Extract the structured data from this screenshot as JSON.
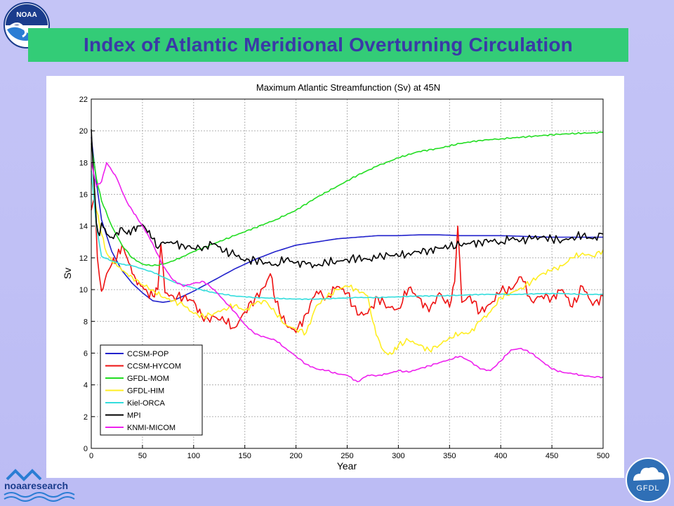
{
  "slide": {
    "title": "Index of Atlantic Meridional Overturning Circulation",
    "noaa_logo_text": "NOAA",
    "noaa_research_text": "noaaresearch",
    "gfdl_logo_text": "GFDL"
  },
  "colors": {
    "background": "#c0c0f5",
    "title_bar": "#33cc77",
    "title_text": "#3a3aa6"
  },
  "chart_data": {
    "type": "line",
    "title": "Maximum Atlantic Streamfunction (Sv) at 45N",
    "xlabel": "Year",
    "ylabel": "Sv",
    "xlim": [
      0,
      500
    ],
    "ylim": [
      0,
      22
    ],
    "xticks": [
      0,
      50,
      100,
      150,
      200,
      250,
      300,
      350,
      400,
      450,
      500
    ],
    "yticks": [
      0,
      2,
      4,
      6,
      8,
      10,
      12,
      14,
      16,
      18,
      20,
      22
    ],
    "grid": true,
    "legend_position": "bottom-left",
    "series": [
      {
        "name": "CCSM-POP",
        "color": "#2222cc",
        "x": [
          0,
          5,
          10,
          20,
          30,
          40,
          50,
          60,
          70,
          80,
          90,
          100,
          120,
          140,
          160,
          180,
          200,
          220,
          240,
          260,
          280,
          300,
          320,
          340,
          360,
          380,
          400,
          450,
          500
        ],
        "y": [
          19.6,
          16.8,
          14.4,
          12.4,
          11.2,
          10.4,
          9.8,
          9.3,
          9.2,
          9.3,
          9.6,
          9.9,
          10.6,
          11.3,
          11.9,
          12.4,
          12.8,
          13.0,
          13.2,
          13.3,
          13.4,
          13.4,
          13.45,
          13.45,
          13.4,
          13.4,
          13.4,
          13.3,
          13.3
        ]
      },
      {
        "name": "CCSM-HYCOM",
        "color": "#ee1111",
        "x": [
          0,
          3,
          6,
          10,
          15,
          20,
          25,
          30,
          35,
          40,
          45,
          50,
          55,
          60,
          65,
          68,
          72,
          80,
          90,
          100,
          110,
          120,
          130,
          140,
          150,
          160,
          170,
          175,
          180,
          190,
          200,
          210,
          220,
          230,
          240,
          250,
          260,
          270,
          280,
          290,
          300,
          310,
          320,
          330,
          340,
          350,
          355,
          358,
          362,
          370,
          380,
          390,
          400,
          410,
          420,
          430,
          440,
          450,
          460,
          470,
          480,
          490,
          500
        ],
        "y": [
          15.0,
          15.8,
          12.0,
          9.9,
          11.0,
          11.6,
          12.0,
          12.8,
          12.0,
          11.0,
          10.3,
          10.2,
          9.8,
          9.6,
          10.0,
          12.9,
          9.8,
          9.6,
          9.5,
          9.3,
          8.0,
          8.3,
          8.0,
          7.6,
          8.6,
          9.5,
          10.2,
          11.0,
          9.2,
          7.8,
          7.3,
          8.5,
          9.9,
          9.5,
          10.2,
          9.8,
          8.4,
          8.5,
          9.5,
          8.9,
          8.8,
          10.1,
          9.5,
          8.6,
          9.8,
          8.9,
          10.5,
          14.0,
          9.2,
          9.6,
          8.6,
          9.1,
          9.9,
          10.0,
          10.8,
          9.3,
          9.6,
          9.5,
          10.0,
          8.9,
          10.2,
          9.0,
          9.6
        ]
      },
      {
        "name": "GFDL-MOM",
        "color": "#22dd22",
        "x": [
          0,
          5,
          10,
          20,
          30,
          40,
          50,
          60,
          70,
          80,
          90,
          100,
          120,
          140,
          160,
          180,
          200,
          220,
          240,
          260,
          280,
          300,
          320,
          340,
          360,
          380,
          400,
          420,
          440,
          460,
          480,
          500
        ],
        "y": [
          19.2,
          17.0,
          15.6,
          14.0,
          12.8,
          12.0,
          11.6,
          11.5,
          11.6,
          11.8,
          12.1,
          12.4,
          12.9,
          13.4,
          13.9,
          14.4,
          15.0,
          15.8,
          16.5,
          17.2,
          17.8,
          18.3,
          18.7,
          18.9,
          19.2,
          19.4,
          19.5,
          19.6,
          19.7,
          19.8,
          19.85,
          19.9
        ]
      },
      {
        "name": "GFDL-HIM",
        "color": "#ffee22",
        "x": [
          0,
          5,
          10,
          15,
          20,
          25,
          30,
          35,
          40,
          50,
          60,
          70,
          80,
          90,
          100,
          110,
          120,
          130,
          140,
          150,
          160,
          170,
          180,
          190,
          200,
          210,
          220,
          230,
          240,
          250,
          260,
          270,
          275,
          280,
          285,
          290,
          295,
          300,
          310,
          320,
          330,
          340,
          350,
          360,
          370,
          380,
          390,
          400,
          410,
          420,
          430,
          440,
          450,
          460,
          470,
          480,
          490,
          500
        ],
        "y": [
          17.0,
          15.0,
          13.5,
          12.3,
          11.8,
          11.5,
          11.2,
          11.0,
          10.8,
          10.3,
          10.0,
          9.5,
          9.3,
          9.0,
          8.5,
          8.3,
          8.5,
          8.8,
          9.0,
          8.7,
          9.1,
          9.3,
          8.5,
          7.8,
          7.5,
          7.3,
          9.0,
          9.5,
          10.0,
          10.2,
          10.0,
          9.6,
          8.0,
          7.0,
          6.2,
          5.9,
          6.0,
          6.5,
          6.8,
          6.5,
          6.2,
          6.5,
          7.0,
          7.2,
          7.3,
          8.0,
          8.6,
          9.5,
          9.8,
          10.1,
          10.5,
          11.0,
          11.2,
          11.5,
          12.0,
          12.3,
          12.1,
          12.5
        ]
      },
      {
        "name": "Kiel-ORCA",
        "color": "#33dddd",
        "x": [
          0,
          5,
          10,
          20,
          30,
          40,
          50,
          60,
          70,
          80,
          90,
          100,
          120,
          140,
          160,
          180,
          200,
          220,
          240,
          260,
          280,
          300,
          320,
          340,
          360,
          380,
          400,
          420,
          440,
          460,
          480,
          500
        ],
        "y": [
          17.5,
          14.0,
          12.1,
          11.8,
          11.6,
          11.5,
          11.3,
          11.1,
          10.8,
          10.5,
          10.3,
          10.1,
          9.8,
          9.6,
          9.5,
          9.45,
          9.4,
          9.4,
          9.45,
          9.5,
          9.5,
          9.55,
          9.6,
          9.6,
          9.65,
          9.7,
          9.7,
          9.7,
          9.75,
          9.75,
          9.7,
          9.7
        ]
      },
      {
        "name": "MPI",
        "color": "#000000",
        "x": [
          0,
          2,
          5,
          8,
          10,
          15,
          20,
          25,
          30,
          35,
          40,
          45,
          50,
          55,
          60,
          65,
          70,
          80,
          90,
          100,
          110,
          120,
          130,
          140,
          150,
          160,
          170,
          180,
          190,
          200,
          210,
          220,
          230,
          240,
          250,
          260,
          270,
          280,
          290,
          300,
          310,
          320,
          330,
          340,
          350,
          360,
          370,
          380,
          390,
          400,
          410,
          420,
          430,
          440,
          450,
          460,
          470,
          480,
          490,
          500
        ],
        "y": [
          20.1,
          17.5,
          14.2,
          13.4,
          14.2,
          13.5,
          13.3,
          13.6,
          13.9,
          13.5,
          13.8,
          14.0,
          14.1,
          13.6,
          13.2,
          12.6,
          13.0,
          12.9,
          12.8,
          12.6,
          12.7,
          12.9,
          12.4,
          12.2,
          11.8,
          11.9,
          11.7,
          11.6,
          11.9,
          11.7,
          11.6,
          11.5,
          11.7,
          11.8,
          11.9,
          12.0,
          11.9,
          12.0,
          12.2,
          12.1,
          12.3,
          12.4,
          12.5,
          12.6,
          12.7,
          12.8,
          12.9,
          13.0,
          13.1,
          13.0,
          13.2,
          13.1,
          13.2,
          13.3,
          13.2,
          13.1,
          13.3,
          13.4,
          13.2,
          13.5
        ]
      },
      {
        "name": "KNMI-MICOM",
        "color": "#ee22ee",
        "x": [
          0,
          5,
          10,
          15,
          20,
          25,
          30,
          35,
          40,
          45,
          50,
          55,
          60,
          70,
          80,
          90,
          100,
          110,
          120,
          130,
          140,
          150,
          160,
          170,
          180,
          190,
          200,
          210,
          220,
          230,
          240,
          250,
          260,
          270,
          280,
          290,
          300,
          310,
          320,
          330,
          340,
          350,
          360,
          370,
          380,
          390,
          400,
          410,
          420,
          430,
          440,
          450,
          460,
          470,
          480,
          490,
          500
        ],
        "y": [
          18.0,
          16.5,
          16.8,
          18.0,
          17.5,
          17.0,
          16.2,
          15.5,
          15.0,
          14.5,
          14.0,
          13.5,
          12.9,
          11.5,
          10.6,
          10.2,
          10.4,
          10.5,
          10.0,
          9.3,
          8.6,
          7.8,
          7.2,
          7.0,
          6.8,
          6.3,
          5.8,
          5.3,
          5.0,
          4.9,
          4.7,
          4.6,
          4.2,
          4.6,
          4.6,
          4.7,
          4.9,
          4.8,
          5.0,
          5.2,
          5.4,
          5.6,
          5.8,
          5.5,
          5.0,
          4.9,
          5.5,
          6.2,
          6.3,
          6.0,
          5.5,
          5.0,
          4.8,
          4.7,
          4.6,
          4.5,
          4.5
        ]
      }
    ]
  }
}
